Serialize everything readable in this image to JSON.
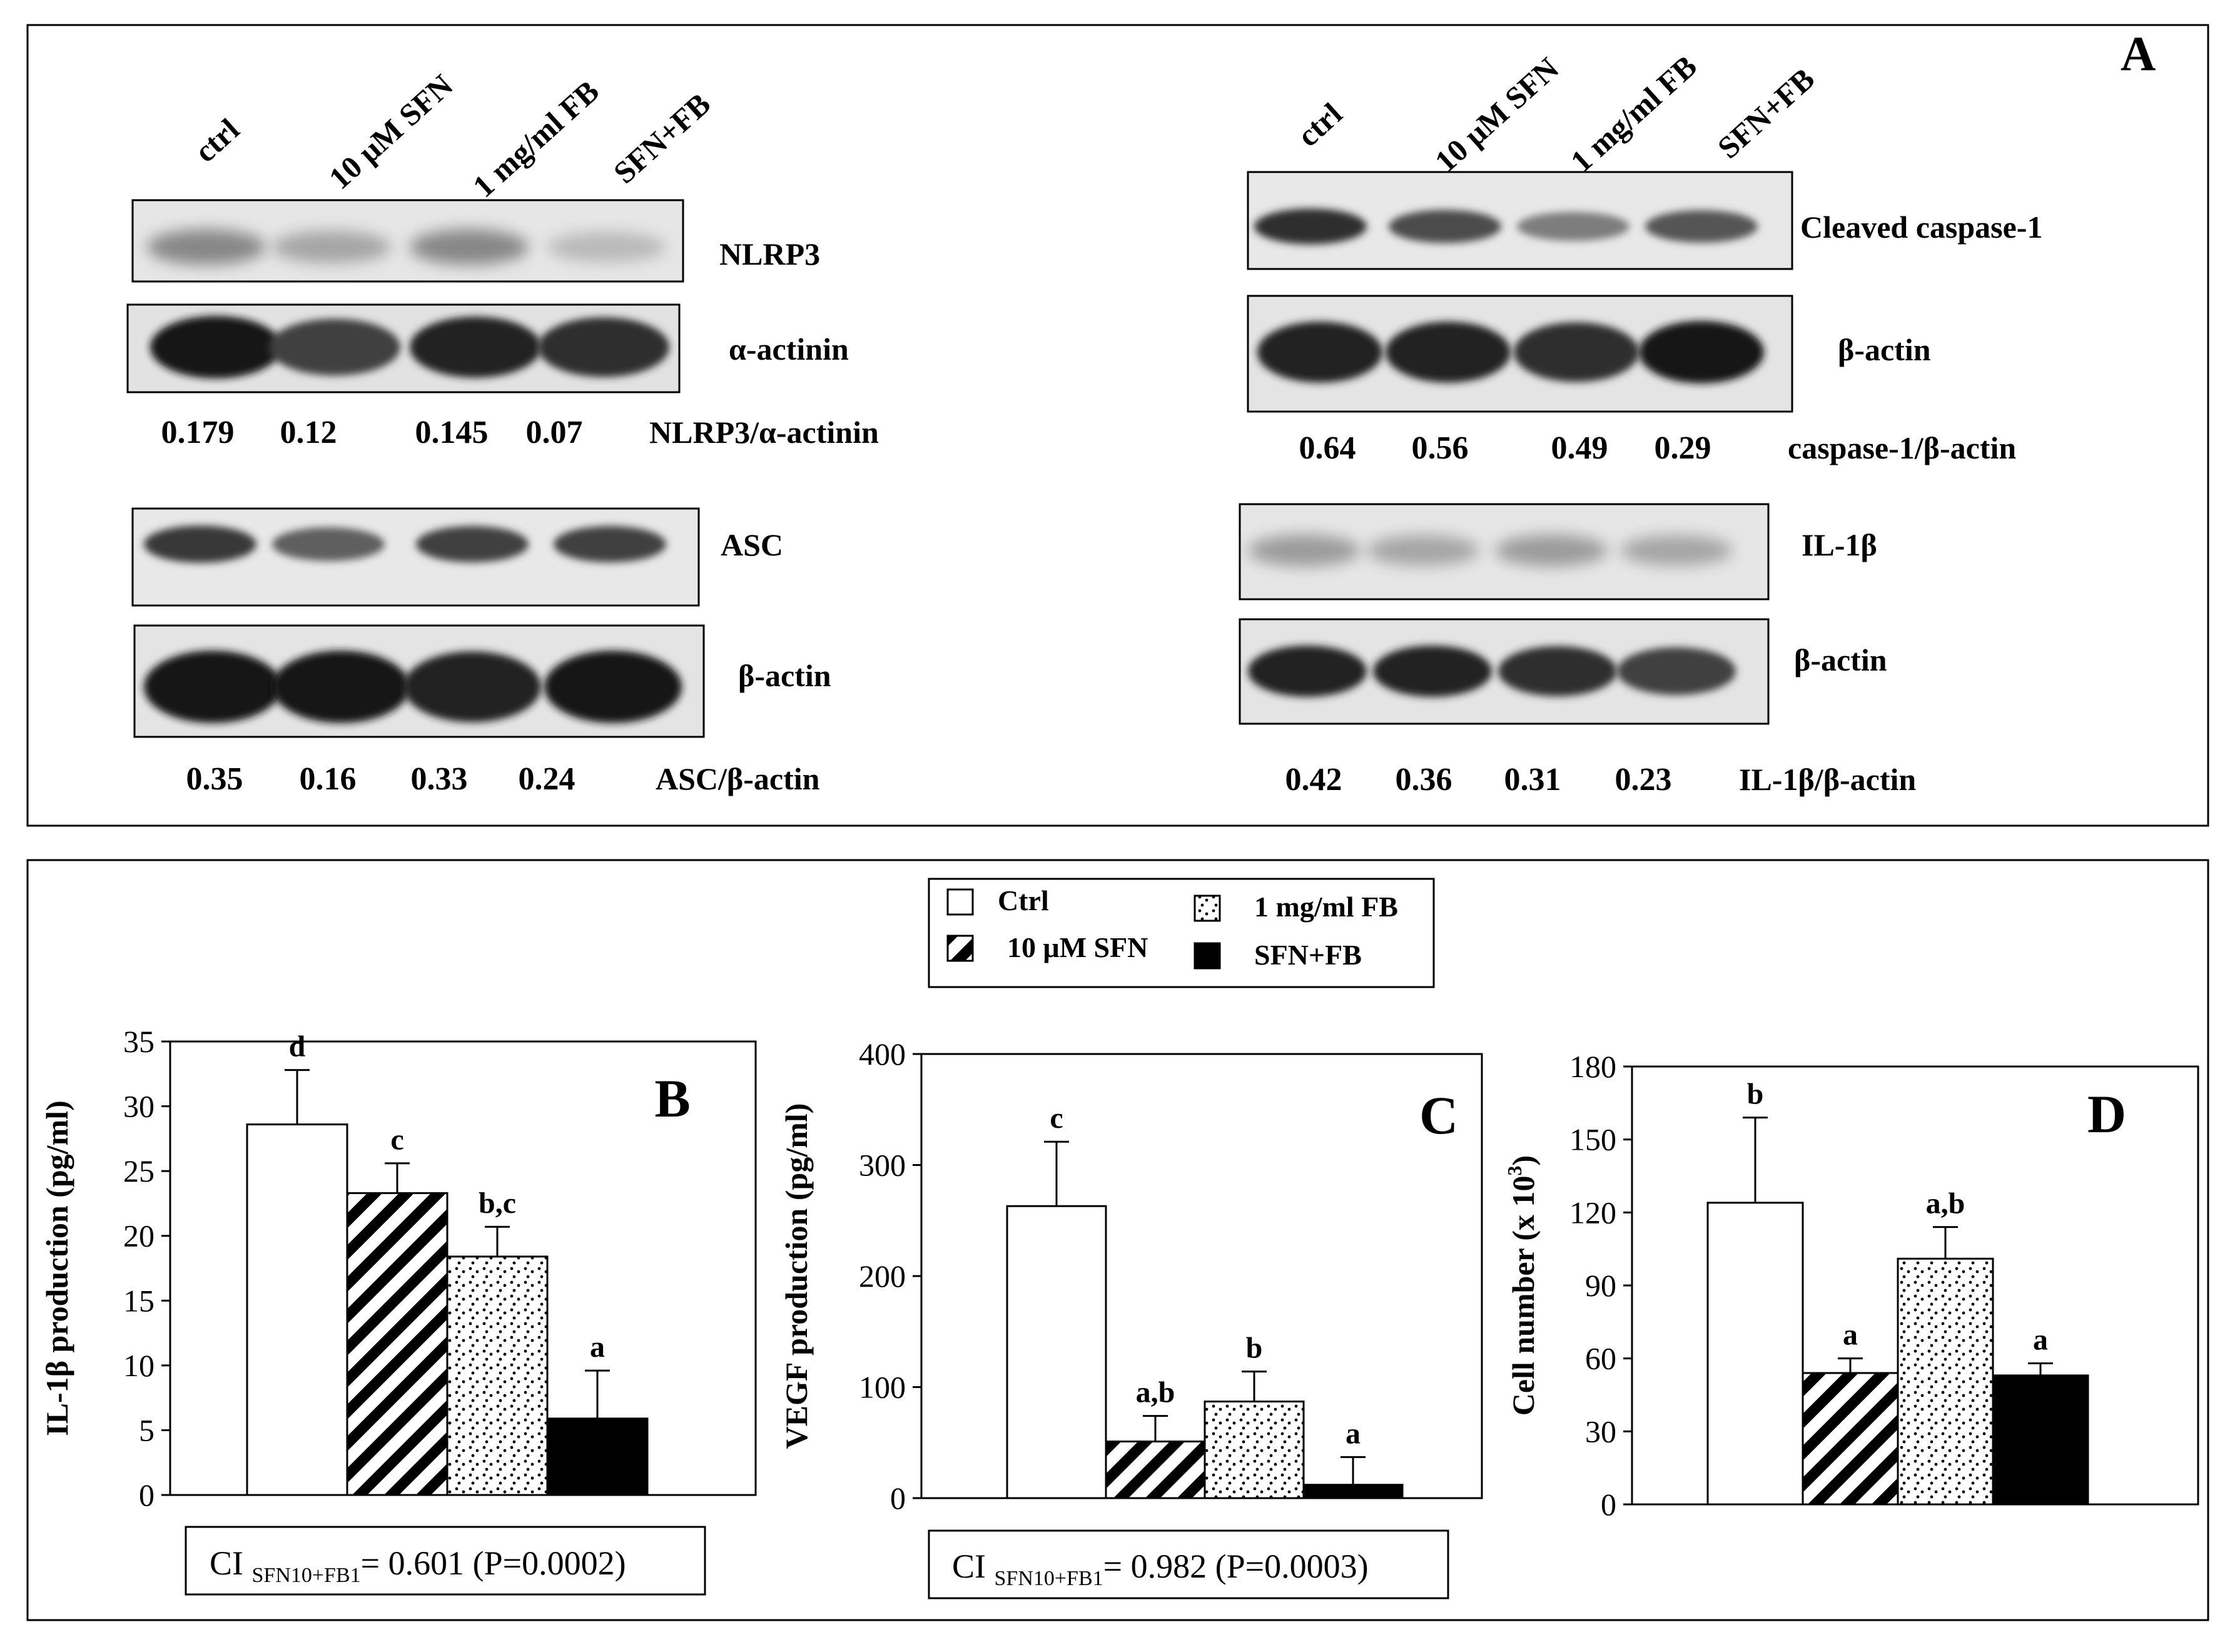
{
  "panel_a": {
    "letter": "A",
    "left": {
      "lanes": [
        "ctrl",
        "10 μM SFN",
        "1 mg/ml FB",
        "SFN+FB"
      ],
      "blots": {
        "nlrp3": {
          "label": "NLRP3",
          "intensity": [
            0.45,
            0.3,
            0.45,
            0.2
          ]
        },
        "actinin": {
          "label": "α-actinin",
          "intensity": [
            1.0,
            0.8,
            0.95,
            0.9
          ]
        },
        "asc": {
          "label": "ASC",
          "intensity": [
            0.85,
            0.65,
            0.8,
            0.8
          ]
        },
        "bactin": {
          "label": "β-actin",
          "intensity": [
            1.0,
            1.0,
            0.95,
            1.0
          ]
        }
      },
      "ratio1": {
        "label": "NLRP3/α-actinin",
        "values": [
          "0.179",
          "0.12",
          "0.145",
          "0.07"
        ]
      },
      "ratio2": {
        "label": "ASC/β-actin",
        "values": [
          "0.35",
          "0.16",
          "0.33",
          "0.24"
        ]
      }
    },
    "right": {
      "lanes": [
        "ctrl",
        "10 μM SFN",
        "1 mg/ml FB",
        "SFN+FB"
      ],
      "blots": {
        "casp": {
          "label": "Cleaved caspase-1",
          "intensity": [
            0.9,
            0.75,
            0.5,
            0.7
          ]
        },
        "bactin1": {
          "label": "β-actin",
          "intensity": [
            0.95,
            0.95,
            0.9,
            1.0
          ]
        },
        "il1b": {
          "label": "IL-1β",
          "intensity": [
            0.35,
            0.3,
            0.35,
            0.3
          ]
        },
        "bactin2": {
          "label": "β-actin",
          "intensity": [
            0.95,
            0.95,
            0.9,
            0.8
          ]
        }
      },
      "ratio1": {
        "label": "caspase-1/β-actin",
        "values": [
          "0.64",
          "0.56",
          "0.49",
          "0.29"
        ]
      },
      "ratio2": {
        "label": "IL-1β/β-actin",
        "values": [
          "0.42",
          "0.36",
          "0.31",
          "0.23"
        ]
      }
    }
  },
  "legend": {
    "items": [
      {
        "name": "Ctrl",
        "pattern": "white"
      },
      {
        "name": "10 μM SFN",
        "pattern": "hatch"
      },
      {
        "name": "1 mg/ml FB",
        "pattern": "dots"
      },
      {
        "name": "SFN+FB",
        "pattern": "black"
      }
    ]
  },
  "chart_data": [
    {
      "type": "bar",
      "letter": "B",
      "categories": [
        "Ctrl",
        "10 μM SFN",
        "1 mg/ml FB",
        "SFN+FB"
      ],
      "values": [
        28.6,
        23.3,
        18.4,
        5.9
      ],
      "errors": [
        4.2,
        2.3,
        2.3,
        3.7
      ],
      "annotations": [
        "d",
        "c",
        "b,c",
        "a"
      ],
      "ylabel": "IL-1β production (pg/ml)",
      "ylim": [
        0,
        35
      ],
      "yticks": [
        0,
        5,
        10,
        15,
        20,
        25,
        30,
        35
      ],
      "ci": {
        "prefix": "CI ",
        "sub": "SFN10+FB1",
        "text": "= 0.601  (P=0.0002)"
      }
    },
    {
      "type": "bar",
      "letter": "C",
      "categories": [
        "Ctrl",
        "10 μM SFN",
        "1 mg/ml FB",
        "SFN+FB"
      ],
      "values": [
        263,
        51,
        87,
        12
      ],
      "errors": [
        58,
        23,
        27,
        25
      ],
      "annotations": [
        "c",
        "a,b",
        "b",
        "a"
      ],
      "ylabel": "VEGF production (pg/ml)",
      "ylim": [
        0,
        400
      ],
      "yticks": [
        0,
        100,
        200,
        300,
        400
      ],
      "ci": {
        "prefix": "CI ",
        "sub": "SFN10+FB1",
        "text": "= 0.982  (P=0.0003)"
      }
    },
    {
      "type": "bar",
      "letter": "D",
      "categories": [
        "Ctrl",
        "10 μM SFN",
        "1 mg/ml FB",
        "SFN+FB"
      ],
      "values": [
        124,
        54,
        101,
        53
      ],
      "errors": [
        35,
        6,
        13,
        5
      ],
      "annotations": [
        "b",
        "a",
        "a,b",
        "a"
      ],
      "ylabel": "Cell number (x 10",
      "ylabel_sup": "3",
      "ylabel_end": ")",
      "ylim": [
        0,
        180
      ],
      "yticks": [
        0,
        30,
        60,
        90,
        120,
        150,
        180
      ]
    }
  ]
}
